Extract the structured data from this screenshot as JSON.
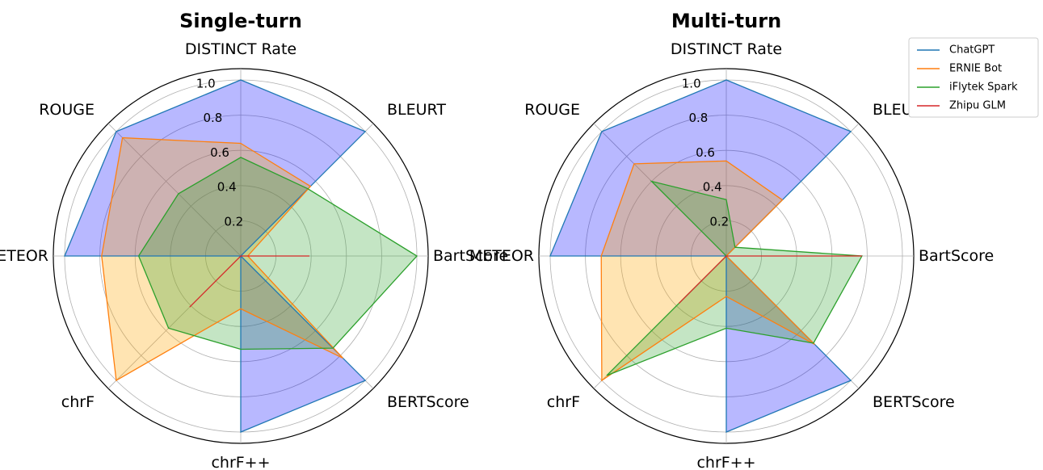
{
  "chart_data": [
    {
      "type": "radar",
      "title": "Single-turn",
      "axes": [
        "DISTINCT Rate",
        "BLEURT",
        "BartScore",
        "BERTScore",
        "chrF++",
        "chrF",
        "METEOR",
        "ROUGE"
      ],
      "rticks": [
        "0.2",
        "0.4",
        "0.6",
        "0.8",
        "1.0"
      ],
      "rtick_values": [
        0.2,
        0.4,
        0.6,
        0.8,
        1.0
      ],
      "rlim": [
        0,
        1.05
      ],
      "grid": true,
      "series": [
        {
          "name": "ChatGPT",
          "values": [
            1.0,
            1.0,
            0.0,
            1.0,
            1.0,
            0.0,
            1.0,
            1.0
          ]
        },
        {
          "name": "ERNIE Bot",
          "values": [
            0.64,
            0.56,
            0.04,
            0.82,
            0.3,
            1.0,
            0.79,
            0.95
          ]
        },
        {
          "name": "iFlytek Spark",
          "values": [
            0.56,
            0.54,
            1.0,
            0.74,
            0.53,
            0.58,
            0.58,
            0.5
          ]
        },
        {
          "name": "Zhipu GLM",
          "values": [
            0.0,
            0.0,
            0.39,
            0.0,
            0.0,
            0.41,
            0.0,
            0.0
          ]
        }
      ]
    },
    {
      "type": "radar",
      "title": "Multi-turn",
      "axes": [
        "DISTINCT Rate",
        "BLEURT",
        "BartScore",
        "BERTScore",
        "chrF++",
        "chrF",
        "METEOR",
        "ROUGE"
      ],
      "rticks": [
        "0.2",
        "0.4",
        "0.6",
        "0.8",
        "1.0"
      ],
      "rtick_values": [
        0.2,
        0.4,
        0.6,
        0.8,
        1.0
      ],
      "rlim": [
        0,
        1.05
      ],
      "grid": true,
      "series": [
        {
          "name": "ChatGPT",
          "values": [
            1.0,
            1.0,
            0.0,
            1.0,
            1.0,
            0.0,
            1.0,
            1.0
          ]
        },
        {
          "name": "ERNIE Bot",
          "values": [
            0.54,
            0.45,
            0.0,
            0.71,
            0.23,
            1.0,
            0.71,
            0.74
          ]
        },
        {
          "name": "iFlytek Spark",
          "values": [
            0.32,
            0.07,
            0.77,
            0.7,
            0.41,
            0.96,
            0.0,
            0.6
          ]
        },
        {
          "name": "Zhipu GLM",
          "values": [
            0.0,
            0.0,
            0.77,
            0.0,
            0.0,
            0.38,
            0.0,
            0.0
          ]
        }
      ]
    }
  ],
  "legend": {
    "placement": "top-right",
    "entries": [
      {
        "name": "ChatGPT",
        "color": "#1f77b4"
      },
      {
        "name": "ERNIE Bot",
        "color": "#ff7f0e"
      },
      {
        "name": "iFlytek Spark",
        "color": "#2ca02c"
      },
      {
        "name": "Zhipu GLM",
        "color": "#d62728"
      }
    ]
  },
  "colors": {
    "ChatGPT": {
      "line": "#1f77b4",
      "fill": "#0000ff",
      "fill_opacity": 0.28
    },
    "ERNIE Bot": {
      "line": "#ff7f0e",
      "fill": "#ffa500",
      "fill_opacity": 0.3
    },
    "iFlytek Spark": {
      "line": "#2ca02c",
      "fill": "#2ca02c",
      "fill_opacity": 0.28
    },
    "Zhipu GLM": {
      "line": "#d62728",
      "fill": "#d62728",
      "fill_opacity": 0.0
    }
  }
}
